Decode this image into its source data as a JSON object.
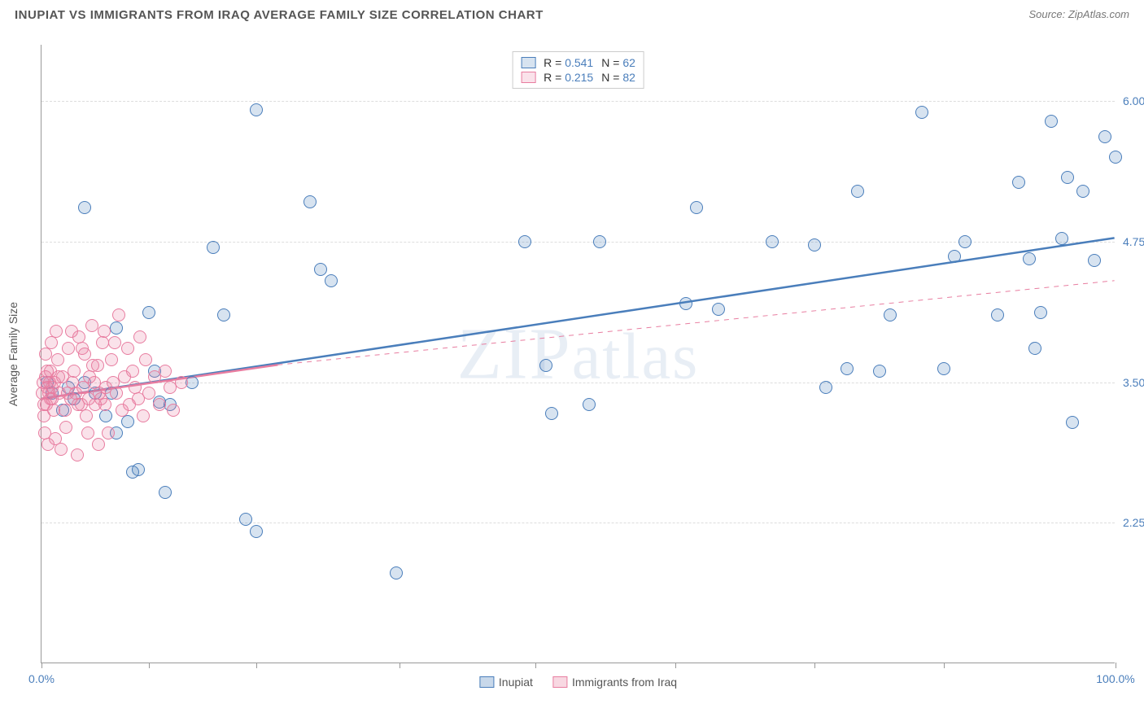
{
  "header": {
    "title": "INUPIAT VS IMMIGRANTS FROM IRAQ AVERAGE FAMILY SIZE CORRELATION CHART",
    "source": "Source: ZipAtlas.com"
  },
  "watermark": "ZIPatlas",
  "chart": {
    "type": "scatter",
    "background_color": "#ffffff",
    "grid_color": "#dddddd",
    "axis_color": "#999999",
    "xlim": [
      0,
      100
    ],
    "ylim": [
      1.0,
      6.5
    ],
    "xticks": [
      0,
      10,
      20,
      33.3,
      46,
      59,
      72,
      84,
      100
    ],
    "xtick_labels_shown": {
      "0": "0.0%",
      "100": "100.0%"
    },
    "yticks": [
      2.25,
      3.5,
      4.75,
      6.0
    ],
    "ytick_labels": [
      "2.25",
      "3.50",
      "4.75",
      "6.00"
    ],
    "yaxis_title": "Average Family Size",
    "tick_label_color": "#4a7ebb",
    "tick_label_fontsize": 14,
    "marker_radius": 8,
    "marker_fill_opacity": 0.25,
    "marker_stroke_width": 1.5,
    "series": [
      {
        "name": "Inupiat",
        "color": "#4a7ebb",
        "fill": "rgba(74,126,187,0.22)",
        "R": "0.541",
        "N": "62",
        "trend": {
          "x1": 0,
          "y1": 3.35,
          "x2": 100,
          "y2": 4.78,
          "dash": false,
          "width": 2.5
        },
        "trend_ext": null,
        "points": [
          [
            4,
            5.05
          ],
          [
            20,
            5.92
          ],
          [
            25,
            5.1
          ],
          [
            26,
            4.5
          ],
          [
            27,
            4.4
          ],
          [
            33,
            1.8
          ],
          [
            7,
            3.98
          ],
          [
            8,
            3.15
          ],
          [
            8.5,
            2.7
          ],
          [
            9,
            2.72
          ],
          [
            10,
            4.12
          ],
          [
            10.5,
            3.6
          ],
          [
            11,
            3.32
          ],
          [
            11.5,
            2.52
          ],
          [
            12,
            3.3
          ],
          [
            14,
            3.5
          ],
          [
            16,
            4.7
          ],
          [
            17,
            4.1
          ],
          [
            19,
            2.28
          ],
          [
            20,
            2.17
          ],
          [
            45,
            4.75
          ],
          [
            47,
            3.65
          ],
          [
            47.5,
            3.22
          ],
          [
            51,
            3.3
          ],
          [
            52,
            4.75
          ],
          [
            60,
            4.2
          ],
          [
            61,
            5.05
          ],
          [
            63,
            4.15
          ],
          [
            68,
            4.75
          ],
          [
            72,
            4.72
          ],
          [
            73,
            3.45
          ],
          [
            75,
            3.62
          ],
          [
            76,
            5.2
          ],
          [
            78,
            3.6
          ],
          [
            79,
            4.1
          ],
          [
            82,
            5.9
          ],
          [
            84,
            3.62
          ],
          [
            85,
            4.62
          ],
          [
            86,
            4.75
          ],
          [
            89,
            4.1
          ],
          [
            91,
            5.28
          ],
          [
            92,
            4.6
          ],
          [
            92.5,
            3.8
          ],
          [
            93,
            4.12
          ],
          [
            94,
            5.82
          ],
          [
            95,
            4.78
          ],
          [
            95.5,
            5.32
          ],
          [
            96,
            3.14
          ],
          [
            97,
            5.2
          ],
          [
            98,
            4.58
          ],
          [
            99,
            5.68
          ],
          [
            100,
            5.5
          ],
          [
            3,
            3.35
          ],
          [
            4,
            3.5
          ],
          [
            5,
            3.4
          ],
          [
            6,
            3.2
          ],
          [
            6.5,
            3.4
          ],
          [
            7,
            3.05
          ],
          [
            0.5,
            3.5
          ],
          [
            1,
            3.4
          ],
          [
            2,
            3.25
          ],
          [
            2.5,
            3.45
          ]
        ]
      },
      {
        "name": "Immigrants from Iraq",
        "color": "#e87da0",
        "fill": "rgba(232,125,160,0.22)",
        "R": "0.215",
        "N": "82",
        "trend": {
          "x1": 0,
          "y1": 3.35,
          "x2": 22,
          "y2": 3.65,
          "dash": false,
          "width": 2.5
        },
        "trend_ext": {
          "x1": 22,
          "y1": 3.65,
          "x2": 100,
          "y2": 4.4,
          "dash": true,
          "width": 1
        },
        "points": [
          [
            0.2,
            3.3
          ],
          [
            0.5,
            3.45
          ],
          [
            0.8,
            3.6
          ],
          [
            1,
            3.35
          ],
          [
            1.2,
            3.5
          ],
          [
            1.5,
            3.7
          ],
          [
            1.7,
            3.4
          ],
          [
            2,
            3.55
          ],
          [
            2.2,
            3.25
          ],
          [
            2.5,
            3.8
          ],
          [
            2.7,
            3.35
          ],
          [
            3,
            3.6
          ],
          [
            3.2,
            3.4
          ],
          [
            3.5,
            3.9
          ],
          [
            3.7,
            3.3
          ],
          [
            4,
            3.75
          ],
          [
            4.2,
            3.2
          ],
          [
            4.5,
            3.55
          ],
          [
            4.7,
            4.0
          ],
          [
            5,
            3.3
          ],
          [
            5.2,
            3.65
          ],
          [
            5.5,
            3.35
          ],
          [
            5.7,
            3.85
          ],
          [
            6,
            3.45
          ],
          [
            6.2,
            3.05
          ],
          [
            6.5,
            3.7
          ],
          [
            6.7,
            3.5
          ],
          [
            7,
            3.4
          ],
          [
            7.2,
            4.1
          ],
          [
            7.5,
            3.25
          ],
          [
            7.7,
            3.55
          ],
          [
            8,
            3.8
          ],
          [
            8.2,
            3.3
          ],
          [
            8.5,
            3.6
          ],
          [
            8.7,
            3.45
          ],
          [
            9,
            3.35
          ],
          [
            9.2,
            3.9
          ],
          [
            9.5,
            3.2
          ],
          [
            9.7,
            3.7
          ],
          [
            10,
            3.4
          ],
          [
            10.5,
            3.55
          ],
          [
            11,
            3.3
          ],
          [
            11.5,
            3.6
          ],
          [
            12,
            3.45
          ],
          [
            12.3,
            3.25
          ],
          [
            13,
            3.5
          ],
          [
            0.3,
            3.05
          ],
          [
            0.6,
            2.95
          ],
          [
            1.3,
            3.0
          ],
          [
            1.8,
            2.9
          ],
          [
            2.3,
            3.1
          ],
          [
            3.3,
            2.85
          ],
          [
            4.3,
            3.05
          ],
          [
            5.3,
            2.95
          ],
          [
            0.4,
            3.75
          ],
          [
            0.9,
            3.85
          ],
          [
            1.4,
            3.95
          ],
          [
            2.8,
            3.95
          ],
          [
            3.8,
            3.8
          ],
          [
            4.8,
            3.65
          ],
          [
            5.8,
            3.95
          ],
          [
            6.8,
            3.85
          ],
          [
            0.1,
            3.4
          ],
          [
            0.15,
            3.5
          ],
          [
            0.25,
            3.2
          ],
          [
            0.35,
            3.55
          ],
          [
            0.45,
            3.3
          ],
          [
            0.55,
            3.6
          ],
          [
            0.65,
            3.4
          ],
          [
            0.75,
            3.5
          ],
          [
            0.85,
            3.35
          ],
          [
            0.95,
            3.45
          ],
          [
            1.1,
            3.25
          ],
          [
            1.6,
            3.55
          ],
          [
            2.4,
            3.4
          ],
          [
            2.9,
            3.5
          ],
          [
            3.4,
            3.3
          ],
          [
            3.9,
            3.45
          ],
          [
            4.4,
            3.35
          ],
          [
            4.9,
            3.5
          ],
          [
            5.4,
            3.4
          ],
          [
            5.9,
            3.3
          ]
        ]
      }
    ],
    "bottom_legend": [
      {
        "label": "Inupiat",
        "color": "#4a7ebb",
        "fill": "rgba(74,126,187,0.3)"
      },
      {
        "label": "Immigrants from Iraq",
        "color": "#e87da0",
        "fill": "rgba(232,125,160,0.3)"
      }
    ]
  }
}
